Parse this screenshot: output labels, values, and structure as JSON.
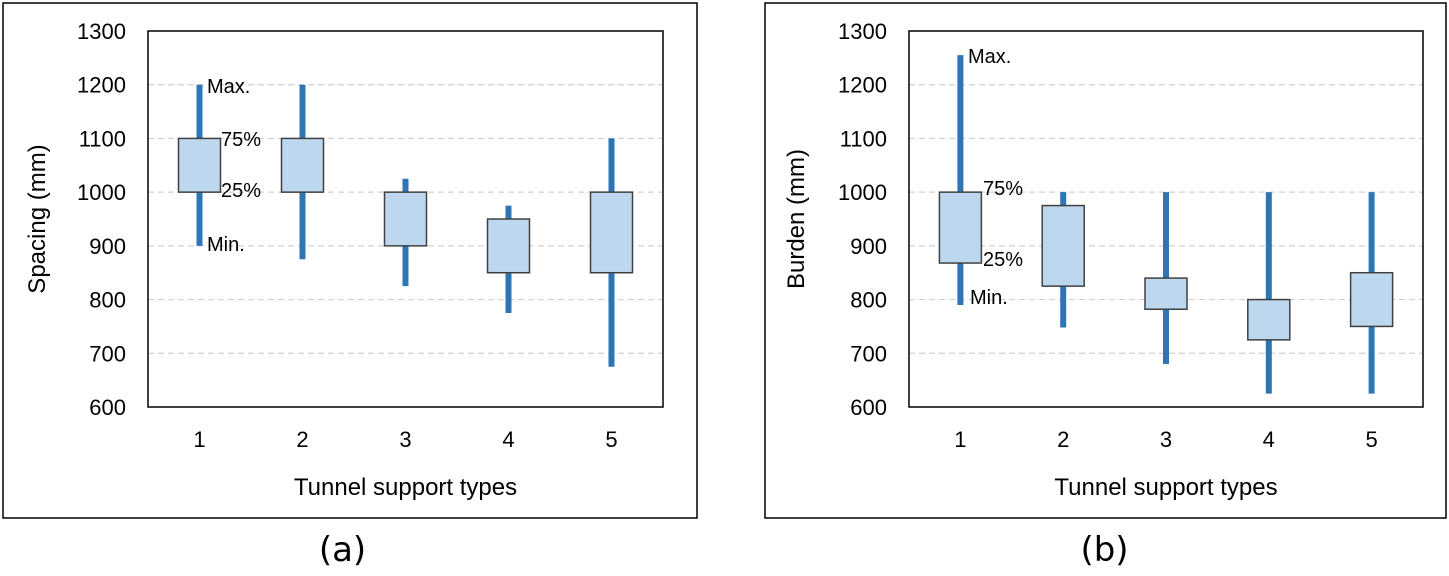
{
  "chart_data": [
    {
      "type": "box",
      "panel_label": "(a)",
      "xlabel": "Tunnel support types",
      "ylabel": "Spacing (mm)",
      "ylim": [
        600,
        1300
      ],
      "yticks": [
        600,
        700,
        800,
        900,
        1000,
        1100,
        1200,
        1300
      ],
      "categories": [
        "1",
        "2",
        "3",
        "4",
        "5"
      ],
      "grid": true,
      "boxes": [
        {
          "min": 900,
          "q1": 1000,
          "q3": 1100,
          "max": 1200
        },
        {
          "min": 875,
          "q1": 1000,
          "q3": 1100,
          "max": 1200
        },
        {
          "min": 825,
          "q1": 900,
          "q3": 1000,
          "max": 1025
        },
        {
          "min": 775,
          "q1": 850,
          "q3": 950,
          "max": 975
        },
        {
          "min": 675,
          "q1": 850,
          "q3": 1000,
          "max": 1100
        }
      ],
      "annotations": {
        "max": "Max.",
        "q3": "75%",
        "q1": "25%",
        "min": "Min."
      },
      "colors": {
        "whisker": "#2e75b6",
        "box_fill": "#bdd7ee",
        "box_stroke": "#404040",
        "grid": "#d0d0d0"
      }
    },
    {
      "type": "box",
      "panel_label": "(b)",
      "xlabel": "Tunnel support types",
      "ylabel": "Burden (mm)",
      "ylim": [
        600,
        1300
      ],
      "yticks": [
        600,
        700,
        800,
        900,
        1000,
        1100,
        1200,
        1300
      ],
      "categories": [
        "1",
        "2",
        "3",
        "4",
        "5"
      ],
      "grid": true,
      "boxes": [
        {
          "min": 790,
          "q1": 868,
          "q3": 1000,
          "max": 1255
        },
        {
          "min": 748,
          "q1": 825,
          "q3": 975,
          "max": 1000
        },
        {
          "min": 680,
          "q1": 782,
          "q3": 840,
          "max": 1000
        },
        {
          "min": 625,
          "q1": 725,
          "q3": 800,
          "max": 1000
        },
        {
          "min": 625,
          "q1": 750,
          "q3": 850,
          "max": 1000
        }
      ],
      "annotations": {
        "max": "Max.",
        "q3": "75%",
        "q1": "25%",
        "min": "Min."
      },
      "colors": {
        "whisker": "#2e75b6",
        "box_fill": "#bdd7ee",
        "box_stroke": "#404040",
        "grid": "#d0d0d0"
      }
    }
  ]
}
